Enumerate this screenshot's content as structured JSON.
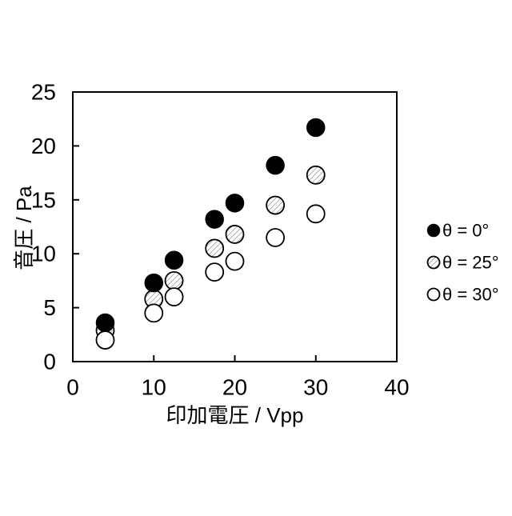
{
  "figure": {
    "background": "#ffffff",
    "frame_color": "#000000",
    "hatch_color": "#7a7a7a"
  },
  "chart_data": {
    "type": "scatter",
    "title": "",
    "xlabel": "印加電圧 / Vpp",
    "ylabel": "音圧 / Pa",
    "xlim": [
      0,
      40
    ],
    "ylim": [
      0,
      25
    ],
    "xticks": [
      0,
      10,
      20,
      30,
      40
    ],
    "yticks": [
      0,
      5,
      10,
      15,
      20,
      25
    ],
    "grid": false,
    "legend_position": "right-outside",
    "x": [
      4,
      10,
      12.5,
      17.5,
      20,
      25,
      30
    ],
    "series": [
      {
        "name": "θ = 0°",
        "marker": "filled-black",
        "values": [
          3.6,
          7.3,
          9.4,
          13.2,
          14.7,
          18.2,
          21.7
        ]
      },
      {
        "name": "θ = 25°",
        "marker": "hatched",
        "values": [
          2.9,
          5.8,
          7.5,
          10.5,
          11.8,
          14.5,
          17.3
        ]
      },
      {
        "name": "θ = 30°",
        "marker": "open",
        "values": [
          2.0,
          4.5,
          6.0,
          8.3,
          9.3,
          11.5,
          13.7
        ]
      }
    ]
  }
}
